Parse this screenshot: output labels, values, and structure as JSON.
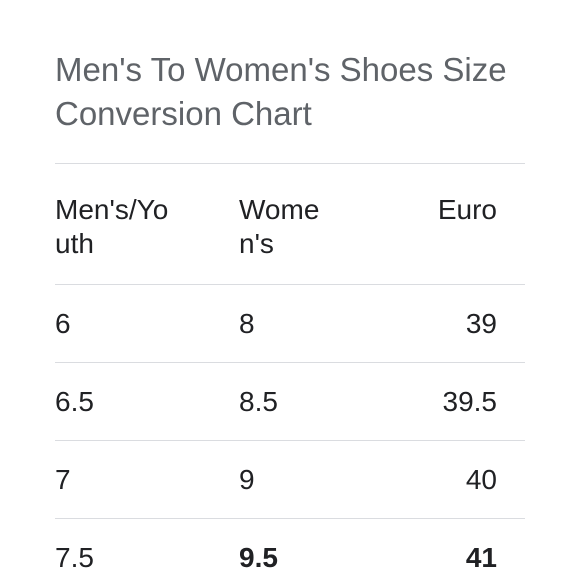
{
  "title": "Men's To Women's Shoes Size Conversion Chart",
  "table": {
    "headers": [
      "Men's/Youth",
      "Women's",
      "Euro"
    ],
    "rows": [
      [
        "6",
        "8",
        "39"
      ],
      [
        "6.5",
        "8.5",
        "39.5"
      ],
      [
        "7",
        "9",
        "40"
      ],
      [
        "7.5",
        "9.5",
        "41"
      ]
    ]
  }
}
